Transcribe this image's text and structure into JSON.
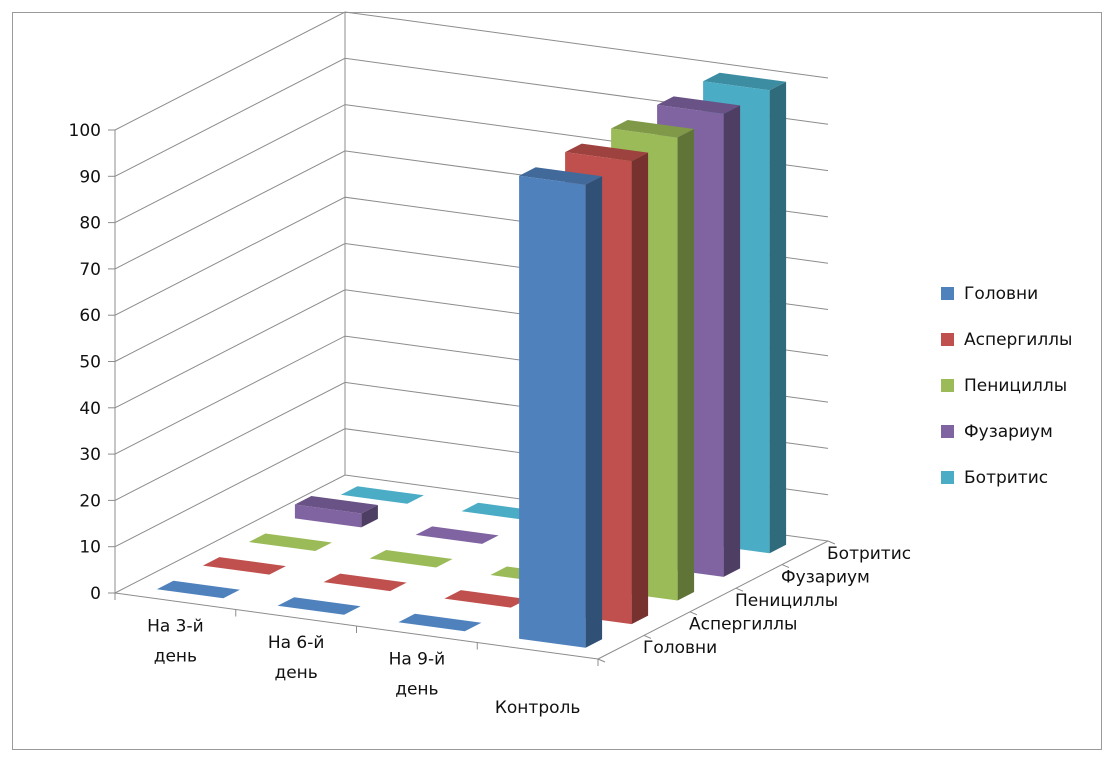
{
  "chart_data": {
    "type": "bar3d",
    "title": "",
    "categories": [
      [
        "На 3-й",
        "день"
      ],
      [
        "На 6-й",
        "день"
      ],
      [
        "На 9-й",
        "день"
      ],
      [
        "Контроль"
      ]
    ],
    "depth_categories": [
      "Головни",
      "Аспергиллы",
      "Пенициллы",
      "Фузариум",
      "Ботритис"
    ],
    "y_ticks": [
      "0",
      "10",
      "20",
      "30",
      "40",
      "50",
      "60",
      "70",
      "80",
      "90",
      "100"
    ],
    "ylim": [
      0,
      100
    ],
    "grid": true,
    "legend_position": "right",
    "series": [
      {
        "name": "Головни",
        "color": "#4F81BD",
        "values": [
          0,
          0,
          0,
          100
        ]
      },
      {
        "name": "Аспергиллы",
        "color": "#C0504D",
        "values": [
          0,
          0,
          0,
          100
        ]
      },
      {
        "name": "Пенициллы",
        "color": "#9BBB59",
        "values": [
          0,
          0,
          0,
          100
        ]
      },
      {
        "name": "Фузариум",
        "color": "#8064A2",
        "values": [
          3,
          0,
          0,
          100
        ]
      },
      {
        "name": "Ботритис",
        "color": "#4BACC6",
        "values": [
          0,
          0,
          0,
          100
        ]
      }
    ]
  }
}
